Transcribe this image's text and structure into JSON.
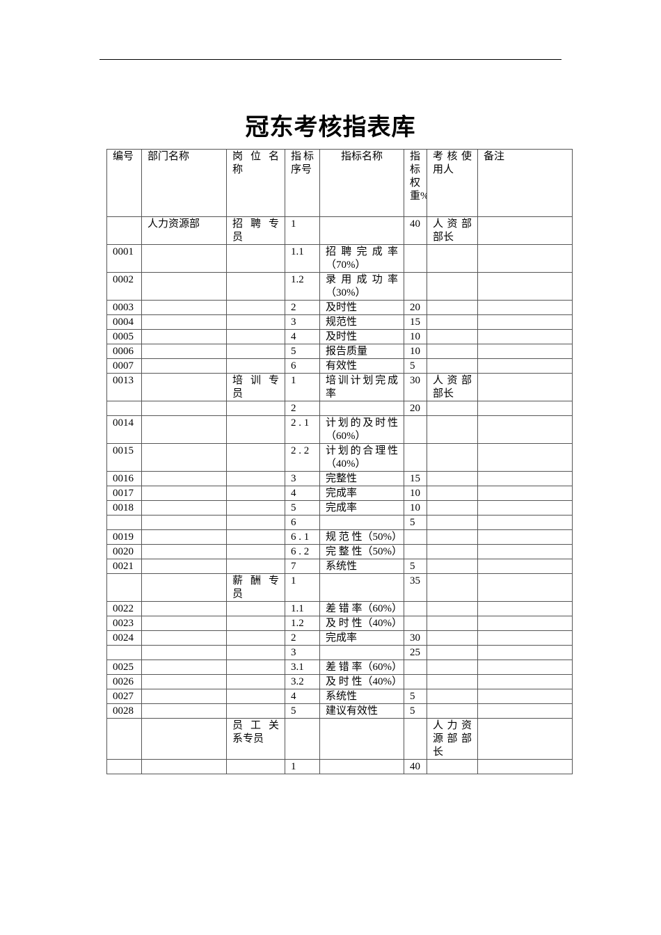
{
  "title": "冠东考核指表库",
  "headers": [
    "编号",
    "部门名称",
    "岗 位 名 称",
    "指标序号",
    "指标名称",
    "指标权重%",
    "考 核 使用人",
    "备注"
  ],
  "rows": [
    [
      "",
      "人力资源部",
      "招 聘 专 员",
      "1",
      "",
      "40",
      "人 资 部 部长",
      ""
    ],
    [
      "0001",
      "",
      "",
      "1.1",
      "招 聘 完 成 率（70%）",
      "",
      "",
      ""
    ],
    [
      "0002",
      "",
      "",
      "1.2",
      "录 用 成 功 率（30%）",
      "",
      "",
      ""
    ],
    [
      "0003",
      "",
      "",
      "2",
      "及时性",
      "20",
      "",
      ""
    ],
    [
      "0004",
      "",
      "",
      "3",
      "规范性",
      "15",
      "",
      ""
    ],
    [
      "0005",
      "",
      "",
      "4",
      "及时性",
      "10",
      "",
      ""
    ],
    [
      "0006",
      "",
      "",
      "5",
      "报告质量",
      "10",
      "",
      ""
    ],
    [
      "0007",
      "",
      "",
      "6",
      "有效性",
      "5",
      "",
      ""
    ],
    [
      "0013",
      "",
      "培 训 专 员",
      "1",
      "培训计划完成率",
      "30",
      "人 资 部 部长",
      ""
    ],
    [
      "",
      "",
      "",
      "2",
      "",
      "20",
      "",
      ""
    ],
    [
      "0014",
      "",
      "",
      "2 . 1",
      "计划的及时性（60%）",
      "",
      "",
      ""
    ],
    [
      "0015",
      "",
      "",
      "2 . 2",
      "计划的合理性（40%）",
      "",
      "",
      ""
    ],
    [
      "0016",
      "",
      "",
      "3",
      "完整性",
      "15",
      "",
      ""
    ],
    [
      "0017",
      "",
      "",
      "4",
      "完成率",
      "10",
      "",
      ""
    ],
    [
      "0018",
      "",
      "",
      "5",
      "完成率",
      "10",
      "",
      ""
    ],
    [
      "",
      "",
      "",
      "6",
      "",
      "5",
      "",
      ""
    ],
    [
      "0019",
      "",
      "",
      "6 . 1",
      "规 范 性（50%）",
      "",
      "",
      ""
    ],
    [
      "0020",
      "",
      "",
      "6 . 2",
      "完 整 性（50%）",
      "",
      "",
      ""
    ],
    [
      "0021",
      "",
      "",
      "7",
      "系统性",
      "5",
      "",
      ""
    ],
    [
      "",
      "",
      "薪 酬 专 员",
      "1",
      "",
      "35",
      "",
      ""
    ],
    [
      "0022",
      "",
      "",
      "1.1",
      "差 错 率（60%）",
      "",
      "",
      ""
    ],
    [
      "0023",
      "",
      "",
      "1.2",
      "及 时 性（40%）",
      "",
      "",
      ""
    ],
    [
      "0024",
      "",
      "",
      "2",
      "完成率",
      "30",
      "",
      ""
    ],
    [
      "",
      "",
      "",
      "3",
      "",
      "25",
      "",
      ""
    ],
    [
      "0025",
      "",
      "",
      "3.1",
      "差 错 率（60%）",
      "",
      "",
      ""
    ],
    [
      "0026",
      "",
      "",
      "3.2",
      "及 时 性（40%）",
      "",
      "",
      ""
    ],
    [
      "0027",
      "",
      "",
      "4",
      "系统性",
      "5",
      "",
      ""
    ],
    [
      "0028",
      "",
      "",
      "5",
      "建议有效性",
      "5",
      "",
      ""
    ],
    [
      "",
      "",
      "员 工 关 系专员",
      "",
      "",
      "",
      "人力资源部部长",
      ""
    ],
    [
      "",
      "",
      "",
      "1",
      "",
      "40",
      "",
      ""
    ]
  ]
}
